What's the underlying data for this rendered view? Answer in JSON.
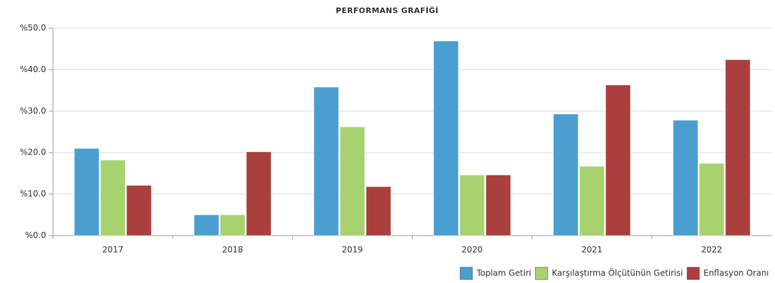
{
  "chart_data": {
    "type": "bar",
    "title": "PERFORMANS GRAFİĞİ",
    "categories": [
      "2017",
      "2018",
      "2019",
      "2020",
      "2021",
      "2022"
    ],
    "series": [
      {
        "name": "Toplam Getiri",
        "color": "#4a9fd0",
        "values": [
          21.0,
          5.0,
          35.8,
          46.9,
          29.3,
          27.8
        ]
      },
      {
        "name": "Karşılaştırma Ölçütünün Getirisi",
        "color": "#a8d26f",
        "values": [
          18.2,
          5.0,
          26.2,
          14.6,
          16.7,
          17.4
        ]
      },
      {
        "name": "Enflasyon Oranı",
        "color": "#aa403d",
        "values": [
          12.1,
          20.2,
          11.8,
          14.6,
          36.3,
          42.4
        ]
      }
    ],
    "ylim": [
      0,
      50
    ],
    "yticks": [
      {
        "value": 0,
        "label": "%0.0"
      },
      {
        "value": 10,
        "label": "%10.0"
      },
      {
        "value": 20,
        "label": "%20.0"
      },
      {
        "value": 30,
        "label": "%30.0"
      },
      {
        "value": 40,
        "label": "%40.0"
      },
      {
        "value": 50,
        "label": "%50.0"
      }
    ],
    "grid": true,
    "legend": "bottom-right"
  }
}
